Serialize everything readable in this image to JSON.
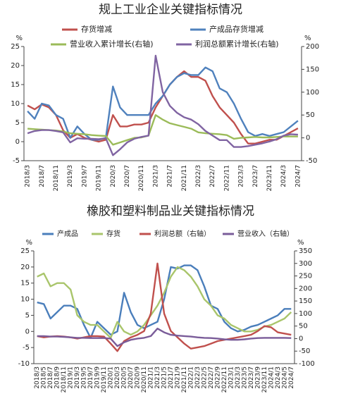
{
  "chart_data": [
    {
      "type": "line",
      "title": "规上工业企业关键指标情况",
      "y_unit": "%",
      "y2_unit": "%",
      "categories": [
        "2018/3",
        null,
        "2018/7",
        null,
        "2018/11",
        null,
        "2019/3",
        null,
        "2019/7",
        null,
        "2019/11",
        null,
        "2020/3",
        null,
        "2020/7",
        null,
        "2020/11",
        null,
        "2021/3",
        null,
        "2021/7",
        null,
        "2021/11",
        null,
        "2022/3",
        null,
        "2022/7",
        null,
        "2022/11",
        null,
        "2023/3",
        null,
        "2023/7",
        null,
        "2023/11",
        null,
        "2024/3",
        null,
        "2024/7"
      ],
      "ylim": [
        -5,
        25
      ],
      "yticks": [
        -5,
        0,
        5,
        10,
        15,
        20,
        25
      ],
      "y2lim": [
        -50,
        200
      ],
      "y2ticks": [
        -50,
        0,
        50,
        100,
        150,
        200
      ],
      "series": [
        {
          "name": "存货增减",
          "color": "#c0504d",
          "values": [
            9.5,
            8.5,
            9.8,
            9,
            7,
            3,
            1,
            2,
            1,
            0.5,
            0,
            0.5,
            7,
            4,
            4,
            4.5,
            4.5,
            5,
            9,
            12,
            15,
            17,
            18.5,
            17,
            17,
            16,
            12,
            9,
            7,
            5,
            2,
            -0.5,
            -0.5,
            0,
            0.5,
            0.5,
            1.5,
            2.5,
            3.5
          ]
        },
        {
          "name": "产成品存货增减",
          "color": "#4f81bd",
          "values": [
            8,
            6,
            10,
            9.5,
            7,
            6,
            1,
            4,
            2,
            0.5,
            0.5,
            1,
            14.5,
            9,
            7,
            7,
            7,
            7,
            10,
            12,
            15,
            17,
            18,
            17.5,
            17.5,
            19.5,
            18.5,
            14,
            13,
            10,
            6,
            2.5,
            1.5,
            2,
            1.5,
            2,
            2.5,
            4,
            5.5
          ]
        },
        {
          "name": "营业收入累计增长(右轴)",
          "color": "#9bbb59",
          "axis": "y2",
          "values": [
            20,
            19,
            18,
            17,
            16,
            14,
            10,
            9,
            8,
            6,
            5,
            4,
            -15,
            -10,
            -5,
            0,
            1,
            5,
            50,
            40,
            32,
            28,
            24,
            20,
            12,
            10,
            9,
            8,
            6,
            -2,
            0,
            1,
            2,
            1,
            1,
            2,
            3,
            3,
            3
          ]
        },
        {
          "name": "利润总额累计增长(右轴)",
          "color": "#8064a2",
          "axis": "y2",
          "values": [
            10,
            15,
            17,
            17,
            15,
            12,
            -10,
            -1,
            -2,
            -2,
            -3,
            -1,
            -38,
            -25,
            -10,
            -2,
            2,
            5,
            180,
            100,
            70,
            55,
            45,
            40,
            30,
            15,
            5,
            -5,
            -5,
            -20,
            -20,
            -18,
            -15,
            -12,
            -8,
            -3,
            5,
            8,
            7
          ]
        }
      ]
    },
    {
      "type": "line",
      "title": "橡胶和塑料制品业关键指标情况",
      "y_unit": "%",
      "y2_unit": "%",
      "categories": [
        "2018/3",
        "2018/5",
        "2018/7",
        "2018/9",
        "2018/11",
        "2019/1",
        "2019/3",
        "2019/5",
        "2019/7",
        "2019/9",
        "2019/11",
        "2020/1",
        "2020/3",
        "2020/5",
        "2020/7",
        "2020/9",
        "2020/11",
        "2021/1",
        "2021/3",
        "2021/5",
        "2021/7",
        "2021/9",
        "2021/11",
        "2022/1",
        "2022/3",
        "2022/5",
        "2022/7",
        "2022/9",
        "2022/11",
        "2023/1",
        "2023/3",
        "2023/5",
        "2023/7",
        "2023/9",
        "2023/11",
        "2024/1",
        "2024/3",
        "2024/5",
        "2024/7"
      ],
      "ylim": [
        -10,
        25
      ],
      "yticks": [
        -10,
        -5,
        0,
        5,
        10,
        15,
        20,
        25
      ],
      "y2lim": [
        -100,
        350
      ],
      "y2ticks": [
        -100,
        -50,
        0,
        50,
        100,
        150,
        200,
        250,
        300,
        350
      ],
      "series": [
        {
          "name": "产成品",
          "color": "#4a7ebb",
          "values": [
            9,
            8.5,
            4,
            6,
            8,
            8,
            7,
            2,
            -2,
            3,
            1,
            -1,
            0,
            12,
            6,
            2,
            1,
            2,
            3,
            10,
            20,
            19.5,
            20.5,
            20.5,
            19,
            14,
            8,
            7,
            3,
            1,
            0,
            0.5,
            1.5,
            2,
            3,
            4,
            5,
            7,
            7
          ]
        },
        {
          "name": "存货",
          "color": "#a9c56b",
          "values": [
            17,
            18,
            14,
            15,
            15,
            13,
            5,
            3,
            2,
            2,
            0,
            -2,
            3,
            0,
            -1,
            0,
            2,
            5,
            8,
            12,
            17,
            20,
            19,
            17,
            14,
            10,
            8,
            5,
            4,
            2,
            1,
            0,
            0,
            0.5,
            1.5,
            2,
            3,
            4,
            6
          ]
        },
        {
          "name": "利润总额（右轴）",
          "color": "#c0504d",
          "axis": "y2",
          "values": [
            10,
            5,
            8,
            10,
            8,
            5,
            0,
            5,
            10,
            10,
            8,
            -20,
            -50,
            -10,
            5,
            15,
            30,
            100,
            300,
            100,
            30,
            5,
            -20,
            -40,
            -35,
            -30,
            -20,
            -10,
            -5,
            0,
            5,
            10,
            15,
            30,
            50,
            45,
            25,
            20,
            15
          ]
        },
        {
          "name": "营业收入（右轴）",
          "color": "#7a5c99",
          "axis": "y2",
          "values": [
            10,
            10,
            8,
            8,
            7,
            5,
            3,
            3,
            2,
            2,
            2,
            0,
            -30,
            -15,
            -5,
            0,
            3,
            10,
            40,
            25,
            15,
            12,
            10,
            8,
            5,
            3,
            2,
            0,
            -3,
            -5,
            -5,
            -3,
            0,
            2,
            3,
            3,
            3,
            3,
            2
          ]
        }
      ]
    }
  ]
}
